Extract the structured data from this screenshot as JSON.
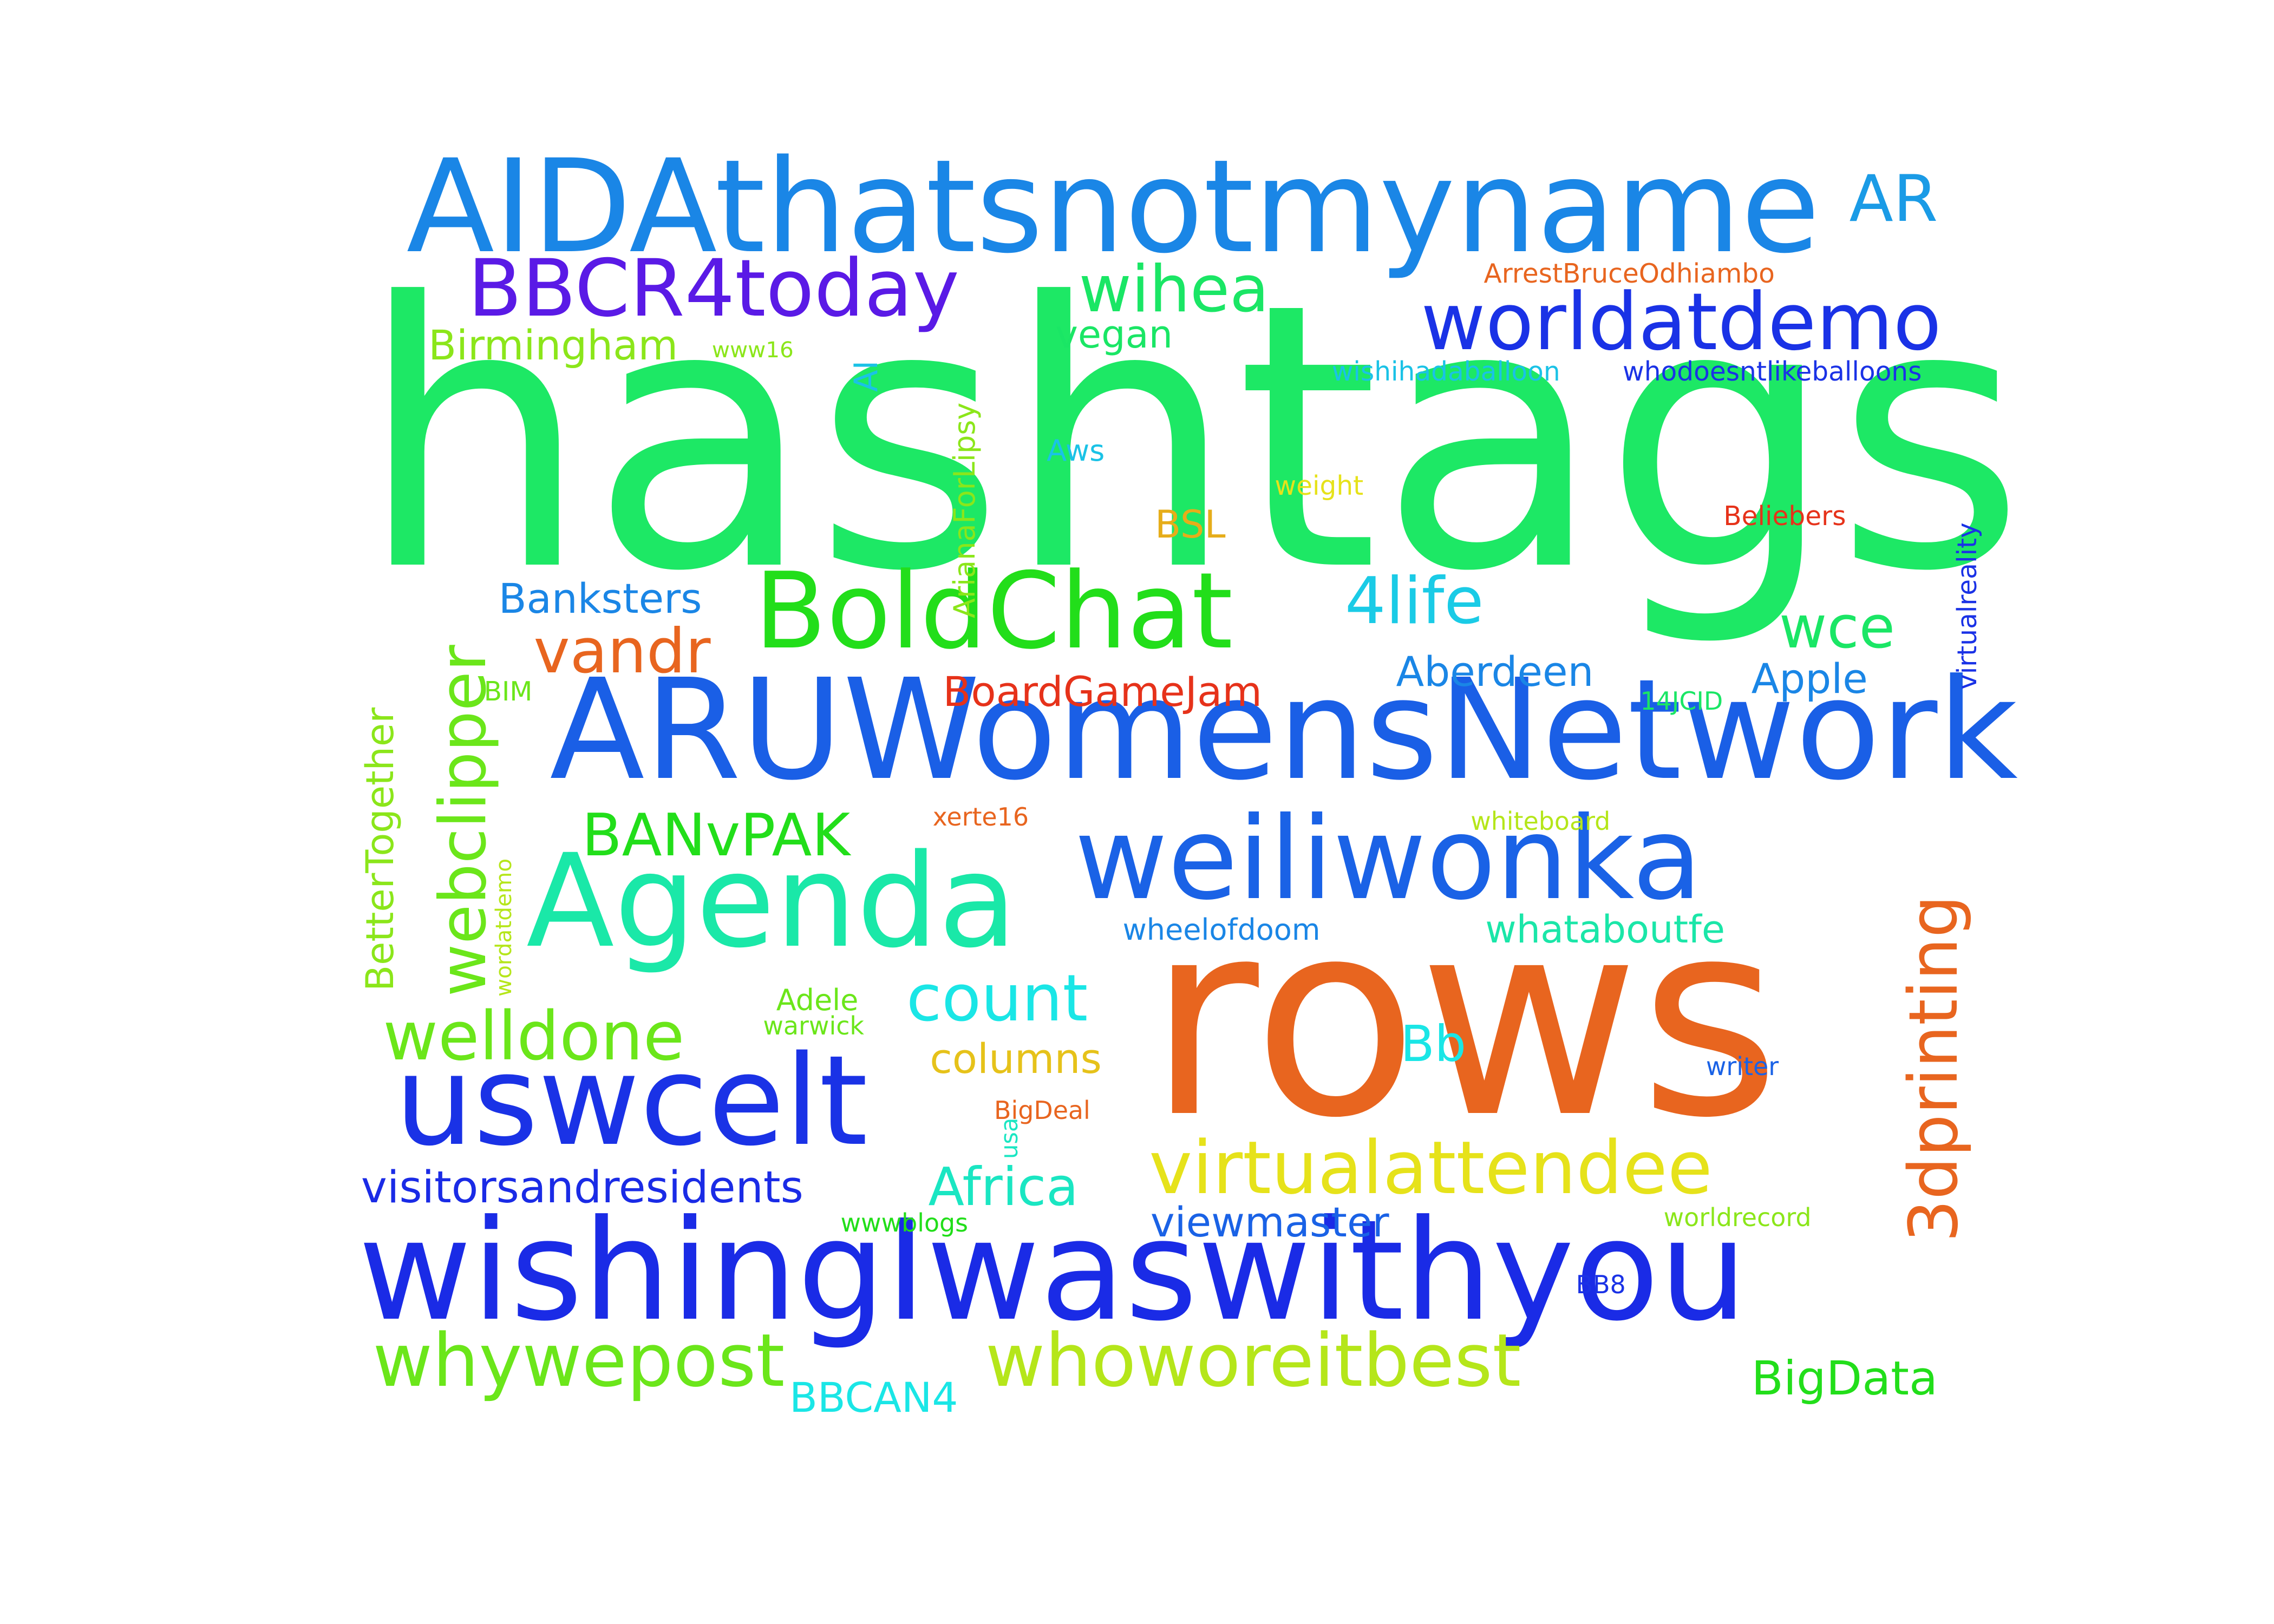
{
  "words": [
    {
      "text": "hashtags",
      "color": "#1de865"
    },
    {
      "text": "rows",
      "color": "#e8651f"
    },
    {
      "text": "AIDAthatsnotmyname",
      "color": "#1a86e6"
    },
    {
      "text": "ARUWomensNetwork",
      "color": "#1a5fe6"
    },
    {
      "text": "wishingIwaswithyou",
      "color": "#1a2be6"
    },
    {
      "text": "Agenda",
      "color": "#1ae8a8"
    },
    {
      "text": "weiliwonka",
      "color": "#1a62e6"
    },
    {
      "text": "uswcelt",
      "color": "#1a32e6"
    },
    {
      "text": "BoldChat",
      "color": "#22de1a"
    },
    {
      "text": "worldatdemo",
      "color": "#1a32e6"
    },
    {
      "text": "BBCR4today",
      "color": "#5a1ae6"
    },
    {
      "text": "virtualattendee",
      "color": "#e6e21a"
    },
    {
      "text": "whoworeitbest",
      "color": "#b5e61a"
    },
    {
      "text": "whywepost",
      "color": "#6be61a"
    },
    {
      "text": "welldone",
      "color": "#6be61a"
    },
    {
      "text": "3dprinting",
      "color": "#e8651f"
    },
    {
      "text": "webclipper",
      "color": "#6be61a"
    },
    {
      "text": "count",
      "color": "#1ae6e6"
    },
    {
      "text": "wihea",
      "color": "#1ae665"
    },
    {
      "text": "4life",
      "color": "#1acbe6"
    },
    {
      "text": "vandr",
      "color": "#e8651f"
    },
    {
      "text": "wce",
      "color": "#1ae665"
    },
    {
      "text": "BANvPAK",
      "color": "#22de1a"
    },
    {
      "text": "AR",
      "color": "#1a9be6"
    },
    {
      "text": "Africa",
      "color": "#1ae6c2"
    },
    {
      "text": "Bb",
      "color": "#1ae6e6"
    },
    {
      "text": "visitorsandresidents",
      "color": "#1a2be6"
    },
    {
      "text": "viewmaster",
      "color": "#1a62e6"
    },
    {
      "text": "BigData",
      "color": "#22de1a"
    },
    {
      "text": "BBCAN4",
      "color": "#1ae6e6"
    },
    {
      "text": "Birmingham",
      "color": "#8be61a"
    },
    {
      "text": "Banksters",
      "color": "#1a86e6"
    },
    {
      "text": "BoardGameJam",
      "color": "#e6321a"
    },
    {
      "text": "Aberdeen",
      "color": "#1a86e6"
    },
    {
      "text": "Apple",
      "color": "#1a86e6"
    },
    {
      "text": "whataboutfe",
      "color": "#1ae6a8"
    },
    {
      "text": "columns",
      "color": "#e6c21a"
    },
    {
      "text": "vegan",
      "color": "#1ae665"
    },
    {
      "text": "BSL",
      "color": "#e6ad1a"
    },
    {
      "text": "BetterTogether",
      "color": "#8be61a"
    },
    {
      "text": "ArianaForLipsy",
      "color": "#8be61a"
    },
    {
      "text": "AI",
      "color": "#1ac2e6"
    },
    {
      "text": "wheelofdoom",
      "color": "#1a86e6"
    },
    {
      "text": "ArrestBruceOdhiambo",
      "color": "#e8651f"
    },
    {
      "text": "wishihadaballoon",
      "color": "#1ac2e6"
    },
    {
      "text": "whodoesntlikeballoons",
      "color": "#1a32e6"
    },
    {
      "text": "Aws",
      "color": "#1ac2e6"
    },
    {
      "text": "weight",
      "color": "#e6e21a"
    },
    {
      "text": "Beliebers",
      "color": "#e6321a"
    },
    {
      "text": "virtualreality",
      "color": "#1a32e6"
    },
    {
      "text": "BIM",
      "color": "#6be61a"
    },
    {
      "text": "14JCID",
      "color": "#1ae665"
    },
    {
      "text": "xerte16",
      "color": "#e8651f"
    },
    {
      "text": "whiteboard",
      "color": "#b5e61a"
    },
    {
      "text": "wordatdemo",
      "color": "#b5e61a"
    },
    {
      "text": "Adele",
      "color": "#6be61a"
    },
    {
      "text": "warwick",
      "color": "#6be61a"
    },
    {
      "text": "BigDeal",
      "color": "#e8651f"
    },
    {
      "text": "usa",
      "color": "#1ae6c2"
    },
    {
      "text": "writer",
      "color": "#1a62e6"
    },
    {
      "text": "wwwblogs",
      "color": "#22de1a"
    },
    {
      "text": "worldrecord",
      "color": "#8be61a"
    },
    {
      "text": "BB8",
      "color": "#1a32e6"
    },
    {
      "text": "www16",
      "color": "#8be61a"
    }
  ]
}
